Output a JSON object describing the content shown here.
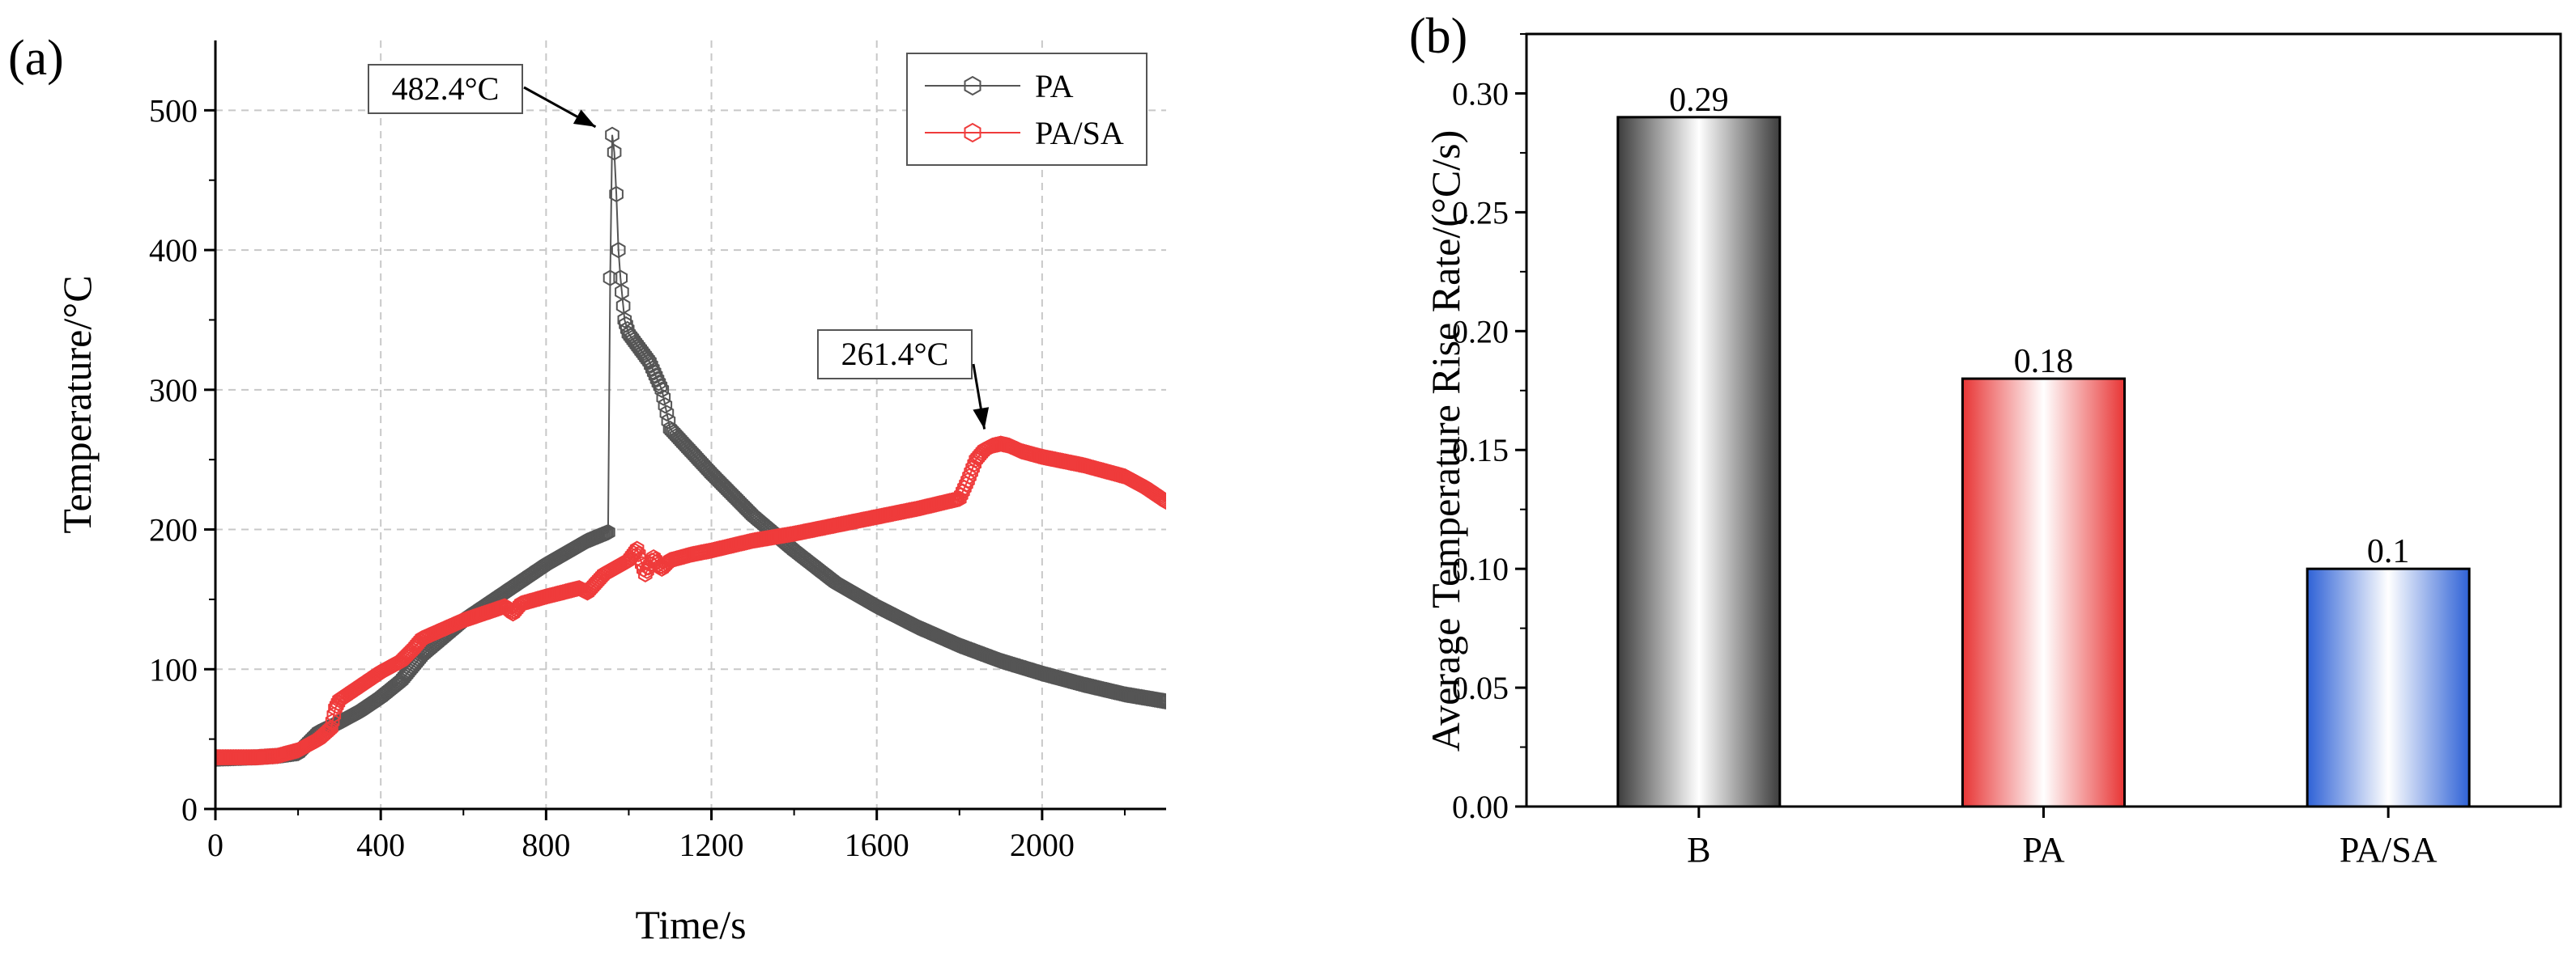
{
  "chart_data": [
    {
      "panel_label": "(a)",
      "type": "line",
      "xlabel": "Time/s",
      "ylabel": "Temperature/°C",
      "xlim": [
        0,
        2300
      ],
      "ylim": [
        0,
        550
      ],
      "xticks": [
        0,
        400,
        800,
        1200,
        1600,
        2000
      ],
      "yticks": [
        0,
        100,
        200,
        300,
        400,
        500
      ],
      "grid": true,
      "legend_position": "top-right",
      "marker": "hexagon",
      "series": [
        {
          "name": "PA",
          "color": "#555555",
          "x": [
            0,
            100,
            150,
            200,
            250,
            300,
            350,
            400,
            450,
            500,
            600,
            700,
            800,
            900,
            950,
            955,
            960,
            965,
            970,
            975,
            980,
            990,
            1000,
            1050,
            1080,
            1100,
            1200,
            1300,
            1400,
            1500,
            1600,
            1700,
            1800,
            1900,
            2000,
            2100,
            2200,
            2300
          ],
          "y": [
            36,
            37,
            38,
            40,
            55,
            62,
            70,
            80,
            92,
            110,
            135,
            155,
            175,
            192,
            198,
            380,
            482.4,
            470,
            440,
            400,
            380,
            350,
            340,
            320,
            300,
            272,
            240,
            210,
            185,
            162,
            145,
            130,
            117,
            106,
            97,
            89,
            82,
            77
          ]
        },
        {
          "name": "PA/SA",
          "color": "#ef3b3b",
          "x": [
            0,
            100,
            150,
            200,
            250,
            280,
            290,
            300,
            350,
            400,
            450,
            480,
            500,
            600,
            700,
            720,
            740,
            800,
            880,
            900,
            940,
            1000,
            1020,
            1040,
            1060,
            1080,
            1100,
            1150,
            1200,
            1300,
            1400,
            1500,
            1600,
            1700,
            1800,
            1820,
            1840,
            1860,
            1880,
            1900,
            1920,
            1950,
            2000,
            2100,
            2200,
            2250,
            2300
          ],
          "y": [
            37,
            37,
            38,
            42,
            50,
            58,
            72,
            78,
            88,
            98,
            106,
            115,
            122,
            135,
            145,
            140,
            147,
            152,
            158,
            155,
            168,
            178,
            186,
            168,
            180,
            172,
            178,
            182,
            185,
            192,
            197,
            203,
            209,
            215,
            222,
            235,
            250,
            257,
            260,
            261.4,
            260,
            256,
            252,
            246,
            238,
            230,
            220
          ]
        }
      ],
      "annotations": [
        {
          "text": "482.4°C",
          "target": [
            955,
            482.4
          ]
        },
        {
          "text": "261.4°C",
          "target": [
            1880,
            261.4
          ]
        }
      ]
    },
    {
      "panel_label": "(b)",
      "type": "bar",
      "ylabel": "Average Temperature Rise Rate/(°C/s)",
      "categories": [
        "B",
        "PA",
        "PA/SA"
      ],
      "values": [
        0.29,
        0.18,
        0.1
      ],
      "value_labels": [
        "0.29",
        "0.18",
        "0.1"
      ],
      "ylim": [
        0,
        0.325
      ],
      "yticks": [
        0.0,
        0.05,
        0.1,
        0.15,
        0.2,
        0.25,
        0.3
      ],
      "ytick_labels": [
        "0.00",
        "0.05",
        "0.10",
        "0.15",
        "0.20",
        "0.25",
        "0.30"
      ],
      "bar_colors": [
        "#3d3d3d",
        "#e83535",
        "#2f62d6"
      ],
      "grid": false
    }
  ]
}
